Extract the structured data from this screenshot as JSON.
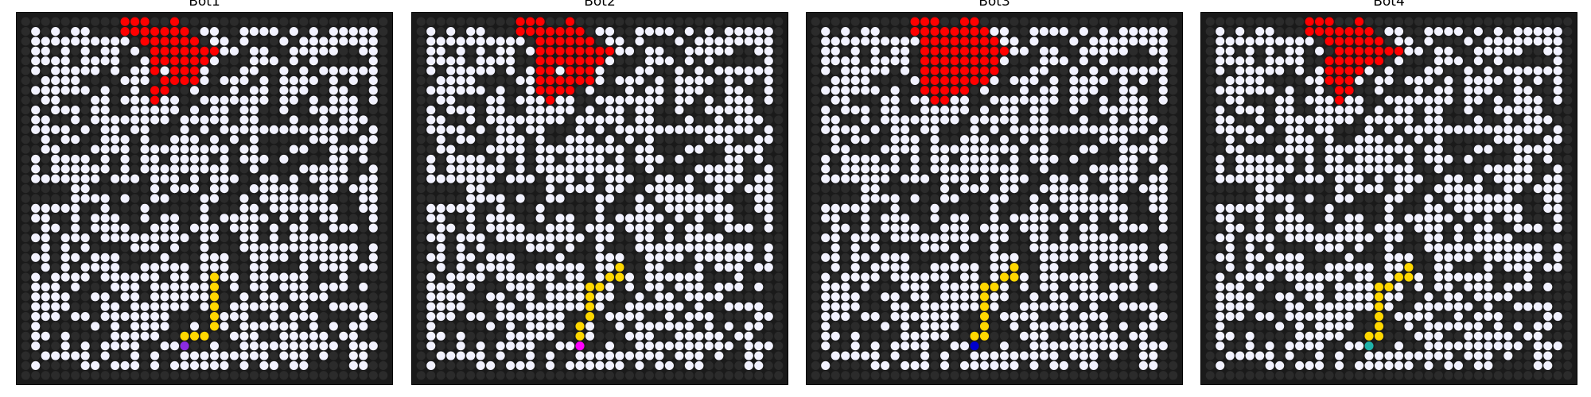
{
  "grid": {
    "rows": 37,
    "cols": 37,
    "open_density": 0.6,
    "seed": 271
  },
  "colors": {
    "background": "#1a1a1a",
    "wall_cell": "#2b2b2b",
    "open_cell": "#f2f2ff",
    "fire": "#ff0000",
    "path": "#ffd700",
    "frame": "#000000"
  },
  "panels": [
    {
      "title": "Bot1",
      "bot_color": "#8a2be2",
      "bot": [
        33,
        16
      ],
      "path": [
        [
          32,
          16
        ],
        [
          32,
          17
        ],
        [
          32,
          18
        ],
        [
          31,
          19
        ],
        [
          30,
          19
        ],
        [
          29,
          19
        ],
        [
          28,
          19
        ],
        [
          27,
          19
        ],
        [
          26,
          19
        ]
      ],
      "fire": [
        [
          0,
          10
        ],
        [
          0,
          11
        ],
        [
          0,
          12
        ],
        [
          0,
          15
        ],
        [
          1,
          10
        ],
        [
          1,
          11
        ],
        [
          1,
          12
        ],
        [
          1,
          13
        ],
        [
          1,
          14
        ],
        [
          1,
          15
        ],
        [
          1,
          16
        ],
        [
          2,
          12
        ],
        [
          2,
          13
        ],
        [
          2,
          14
        ],
        [
          2,
          15
        ],
        [
          2,
          16
        ],
        [
          2,
          17
        ],
        [
          3,
          13
        ],
        [
          3,
          14
        ],
        [
          3,
          15
        ],
        [
          3,
          16
        ],
        [
          3,
          17
        ],
        [
          3,
          18
        ],
        [
          3,
          19
        ],
        [
          4,
          13
        ],
        [
          4,
          14
        ],
        [
          4,
          15
        ],
        [
          4,
          16
        ],
        [
          4,
          17
        ],
        [
          4,
          18
        ],
        [
          5,
          13
        ],
        [
          5,
          15
        ],
        [
          5,
          16
        ],
        [
          5,
          17
        ],
        [
          6,
          14
        ],
        [
          6,
          15
        ],
        [
          6,
          16
        ],
        [
          6,
          17
        ],
        [
          7,
          13
        ],
        [
          7,
          14
        ],
        [
          8,
          13
        ]
      ]
    },
    {
      "title": "Bot2",
      "bot_color": "#ff00ff",
      "bot": [
        33,
        16
      ],
      "path": [
        [
          32,
          16
        ],
        [
          31,
          16
        ],
        [
          30,
          17
        ],
        [
          29,
          17
        ],
        [
          28,
          17
        ],
        [
          27,
          17
        ],
        [
          27,
          18
        ],
        [
          26,
          19
        ],
        [
          26,
          20
        ],
        [
          25,
          20
        ]
      ],
      "fire": [
        [
          0,
          10
        ],
        [
          0,
          11
        ],
        [
          0,
          12
        ],
        [
          0,
          15
        ],
        [
          1,
          10
        ],
        [
          1,
          11
        ],
        [
          1,
          12
        ],
        [
          1,
          13
        ],
        [
          1,
          14
        ],
        [
          1,
          15
        ],
        [
          1,
          16
        ],
        [
          2,
          12
        ],
        [
          2,
          13
        ],
        [
          2,
          14
        ],
        [
          2,
          15
        ],
        [
          2,
          16
        ],
        [
          2,
          17
        ],
        [
          3,
          12
        ],
        [
          3,
          13
        ],
        [
          3,
          14
        ],
        [
          3,
          15
        ],
        [
          3,
          16
        ],
        [
          3,
          17
        ],
        [
          3,
          18
        ],
        [
          3,
          19
        ],
        [
          4,
          12
        ],
        [
          4,
          13
        ],
        [
          4,
          14
        ],
        [
          4,
          15
        ],
        [
          4,
          16
        ],
        [
          4,
          17
        ],
        [
          4,
          18
        ],
        [
          5,
          12
        ],
        [
          5,
          13
        ],
        [
          5,
          15
        ],
        [
          5,
          16
        ],
        [
          5,
          17
        ],
        [
          6,
          12
        ],
        [
          6,
          13
        ],
        [
          6,
          14
        ],
        [
          6,
          15
        ],
        [
          6,
          16
        ],
        [
          6,
          17
        ],
        [
          7,
          12
        ],
        [
          7,
          13
        ],
        [
          7,
          14
        ],
        [
          7,
          15
        ],
        [
          8,
          13
        ]
      ]
    },
    {
      "title": "Bot3",
      "bot_color": "#0000cd",
      "bot": [
        33,
        16
      ],
      "path": [
        [
          32,
          16
        ],
        [
          32,
          17
        ],
        [
          31,
          17
        ],
        [
          30,
          17
        ],
        [
          29,
          17
        ],
        [
          28,
          17
        ],
        [
          27,
          17
        ],
        [
          27,
          18
        ],
        [
          26,
          19
        ],
        [
          26,
          20
        ],
        [
          25,
          20
        ]
      ],
      "fire": [
        [
          0,
          10
        ],
        [
          0,
          11
        ],
        [
          0,
          12
        ],
        [
          0,
          15
        ],
        [
          0,
          16
        ],
        [
          1,
          10
        ],
        [
          1,
          11
        ],
        [
          1,
          12
        ],
        [
          1,
          13
        ],
        [
          1,
          14
        ],
        [
          1,
          15
        ],
        [
          1,
          16
        ],
        [
          1,
          17
        ],
        [
          2,
          11
        ],
        [
          2,
          12
        ],
        [
          2,
          13
        ],
        [
          2,
          14
        ],
        [
          2,
          15
        ],
        [
          2,
          16
        ],
        [
          2,
          17
        ],
        [
          2,
          18
        ],
        [
          3,
          11
        ],
        [
          3,
          12
        ],
        [
          3,
          13
        ],
        [
          3,
          14
        ],
        [
          3,
          15
        ],
        [
          3,
          16
        ],
        [
          3,
          17
        ],
        [
          3,
          18
        ],
        [
          3,
          19
        ],
        [
          4,
          11
        ],
        [
          4,
          12
        ],
        [
          4,
          13
        ],
        [
          4,
          14
        ],
        [
          4,
          15
        ],
        [
          4,
          16
        ],
        [
          4,
          17
        ],
        [
          4,
          18
        ],
        [
          5,
          11
        ],
        [
          5,
          12
        ],
        [
          5,
          13
        ],
        [
          5,
          14
        ],
        [
          5,
          15
        ],
        [
          5,
          16
        ],
        [
          5,
          17
        ],
        [
          5,
          18
        ],
        [
          6,
          11
        ],
        [
          6,
          12
        ],
        [
          6,
          13
        ],
        [
          6,
          14
        ],
        [
          6,
          15
        ],
        [
          6,
          16
        ],
        [
          6,
          17
        ],
        [
          7,
          11
        ],
        [
          7,
          12
        ],
        [
          7,
          13
        ],
        [
          7,
          14
        ],
        [
          7,
          15
        ],
        [
          8,
          12
        ],
        [
          8,
          13
        ]
      ]
    },
    {
      "title": "Bot4",
      "bot_color": "#20b2aa",
      "bot": [
        33,
        16
      ],
      "path": [
        [
          32,
          16
        ],
        [
          32,
          17
        ],
        [
          31,
          17
        ],
        [
          30,
          17
        ],
        [
          29,
          17
        ],
        [
          28,
          17
        ],
        [
          27,
          17
        ],
        [
          27,
          18
        ],
        [
          26,
          19
        ],
        [
          26,
          20
        ],
        [
          25,
          20
        ]
      ],
      "fire": [
        [
          0,
          10
        ],
        [
          0,
          11
        ],
        [
          0,
          12
        ],
        [
          0,
          15
        ],
        [
          1,
          10
        ],
        [
          1,
          11
        ],
        [
          1,
          12
        ],
        [
          1,
          13
        ],
        [
          1,
          14
        ],
        [
          1,
          15
        ],
        [
          1,
          16
        ],
        [
          2,
          12
        ],
        [
          2,
          13
        ],
        [
          2,
          14
        ],
        [
          2,
          15
        ],
        [
          2,
          16
        ],
        [
          2,
          17
        ],
        [
          3,
          13
        ],
        [
          3,
          14
        ],
        [
          3,
          15
        ],
        [
          3,
          16
        ],
        [
          3,
          17
        ],
        [
          3,
          18
        ],
        [
          3,
          19
        ],
        [
          4,
          12
        ],
        [
          4,
          13
        ],
        [
          4,
          14
        ],
        [
          4,
          15
        ],
        [
          4,
          16
        ],
        [
          4,
          17
        ],
        [
          5,
          12
        ],
        [
          5,
          13
        ],
        [
          5,
          14
        ],
        [
          5,
          15
        ],
        [
          6,
          12
        ],
        [
          6,
          13
        ],
        [
          6,
          14
        ],
        [
          7,
          13
        ],
        [
          7,
          14
        ],
        [
          8,
          13
        ]
      ]
    }
  ]
}
